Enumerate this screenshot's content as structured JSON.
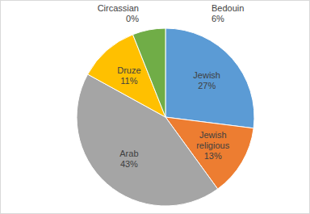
{
  "chart_data": {
    "type": "pie",
    "categories": [
      "Jewish",
      "Jewish religious",
      "Arab",
      "Druze",
      "Circassian",
      "Bedouin"
    ],
    "values": [
      27,
      13,
      43,
      11,
      0,
      6
    ],
    "value_labels": [
      "27%",
      "13%",
      "43%",
      "11%",
      "0%",
      "6%"
    ],
    "colors": [
      "#5b9bd5",
      "#ed7d31",
      "#a5a5a5",
      "#ffc000",
      "#4472c4",
      "#70ad47"
    ],
    "data_labels": true
  }
}
